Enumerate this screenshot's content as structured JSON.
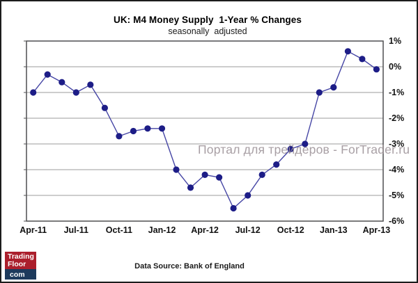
{
  "header": {
    "title": "UK: M4 Money Supply  1-Year % Changes",
    "subtitle": "seasonally  adjusted"
  },
  "chart_data": {
    "type": "line",
    "title": "UK: M4 Money Supply 1-Year % Changes",
    "subtitle": "seasonally adjusted",
    "x": [
      "Apr-11",
      "May-11",
      "Jun-11",
      "Jul-11",
      "Aug-11",
      "Sep-11",
      "Oct-11",
      "Nov-11",
      "Dec-11",
      "Jan-12",
      "Feb-12",
      "Mar-12",
      "Apr-12",
      "May-12",
      "Jun-12",
      "Jul-12",
      "Aug-12",
      "Sep-12",
      "Oct-12",
      "Nov-12",
      "Dec-12",
      "Jan-13",
      "Feb-13",
      "Mar-13",
      "Apr-13"
    ],
    "values": [
      -1.0,
      -0.3,
      -0.6,
      -1.0,
      -0.7,
      -1.6,
      -2.7,
      -2.5,
      -2.4,
      -2.4,
      -4.0,
      -4.7,
      -4.2,
      -4.3,
      -5.5,
      -5.0,
      -4.2,
      -3.8,
      -3.2,
      -3.0,
      -1.0,
      -0.8,
      0.6,
      0.3,
      -0.1
    ],
    "x_axis_tick_labels": [
      "Apr-11",
      "Jul-11",
      "Oct-11",
      "Jan-12",
      "Apr-12",
      "Jul-12",
      "Oct-12",
      "Jan-13",
      "Apr-13"
    ],
    "y_axis_tick_labels": [
      "1%",
      "0%",
      "-1%",
      "-2%",
      "-3%",
      "-4%",
      "-5%",
      "-6%"
    ],
    "ylim": [
      -6,
      1
    ],
    "unit": "%",
    "grid": "horizontal",
    "legend": "none",
    "line_color": "#4444a4",
    "marker_color": "#1d1d87",
    "grid_color": "#9b9b9b",
    "axis_color": "#4f4f51"
  },
  "watermark": {
    "text": "Портал для трейдеров - ForTrader.ru",
    "color": "rgba(153,142,148,0.85)"
  },
  "logo": {
    "line1": "Trading",
    "line2": "Floor",
    "tld": "com",
    "red": "#ab1f2c",
    "navy": "#1d3a5c"
  },
  "footer": {
    "text": "Data Source: Bank of England"
  }
}
